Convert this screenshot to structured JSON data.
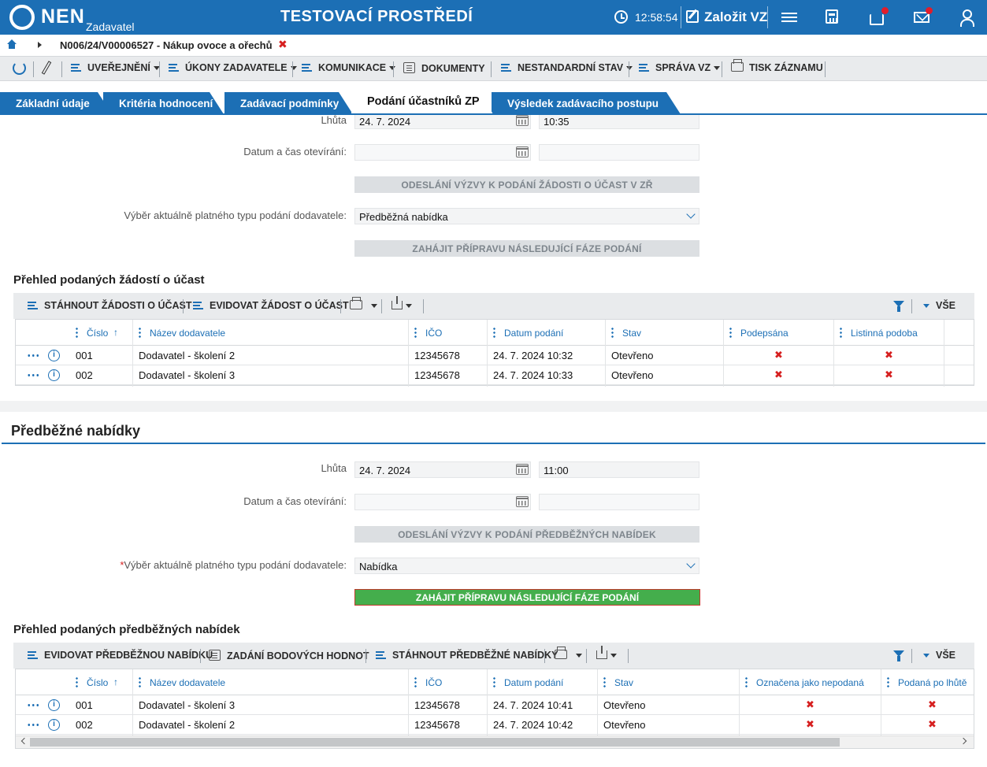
{
  "header": {
    "logo": "NEN",
    "logo_sub": "Zadavatel",
    "env_title": "TESTOVACÍ PROSTŘEDÍ",
    "time": "12:58:54",
    "new_vz": "Založit VZ",
    "colors": {
      "brand": "#1c6fb5",
      "alert": "#e11d2b"
    }
  },
  "breadcrumb": {
    "path": "N006/24/V00006527 - Nákup ovoce a ořechů",
    "close": "✖"
  },
  "toolbar": {
    "items": [
      "UVEŘEJNĚNÍ",
      "ÚKONY ZADAVATELE",
      "KOMUNIKACE",
      "DOKUMENTY",
      "NESTANDARDNÍ STAV",
      "SPRÁVA VZ",
      "TISK ZÁZNAMU"
    ]
  },
  "tabs": [
    "Základní údaje",
    "Kritéria hodnocení",
    "Zadávací podmínky",
    "Podání účastníků ZP",
    "Výsledek zadávacího postupu"
  ],
  "section1": {
    "lhuta_label": "Lhůta",
    "lhuta_date": "24. 7. 2024",
    "lhuta_time": "10:35",
    "otevirani_label": "Datum a čas otevírání:",
    "btn_odeslani": "ODESLÁNÍ VÝZVY K PODÁNÍ ŽÁDOSTI O ÚČAST V ZŘ",
    "typ_label": "Výběr aktuálně platného typu podání dodavatele:",
    "typ_value": "Předběžná nabídka",
    "btn_zahajit": "ZAHÁJIT PŘÍPRAVU NÁSLEDUJÍCÍ FÁZE PODÁNÍ",
    "grid_title": "Přehled podaných žádostí o účast",
    "grid_toolbar": [
      "STÁHNOUT ŽÁDOSTI O ÚČAST",
      "EVIDOVAT ŽÁDOST O ÚČAST"
    ],
    "grid_all": "VŠE",
    "columns": [
      "Číslo",
      "Název dodavatele",
      "IČO",
      "Datum podání",
      "Stav",
      "Podepsána",
      "Listinná podoba"
    ],
    "rows": [
      {
        "cislo": "001",
        "nazev": "Dodavatel - školení 2",
        "ico": "12345678",
        "datum": "24. 7. 2024 10:32",
        "stav": "Otevřeno",
        "x1": "✖",
        "x2": "✖"
      },
      {
        "cislo": "002",
        "nazev": "Dodavatel - školení 3",
        "ico": "12345678",
        "datum": "24. 7. 2024 10:33",
        "stav": "Otevřeno",
        "x1": "✖",
        "x2": "✖"
      }
    ]
  },
  "section2": {
    "panel_title": "Předběžné nabídky",
    "lhuta_label": "Lhůta",
    "lhuta_date": "24. 7. 2024",
    "lhuta_time": "11:00",
    "otevirani_label": "Datum a čas otevírání:",
    "btn_odeslani": "ODESLÁNÍ VÝZVY K PODÁNÍ PŘEDBĚŽNÝCH NABÍDEK",
    "required_mark": "*",
    "typ_label": "Výběr aktuálně platného typu podání dodavatele:",
    "typ_value": "Nabídka",
    "btn_zahajit": "ZAHÁJIT PŘÍPRAVU NÁSLEDUJÍCÍ FÁZE PODÁNÍ",
    "grid_title": "Přehled podaných předběžných nabídek",
    "grid_toolbar": [
      "EVIDOVAT PŘEDBĚŽNOU NABÍDKU",
      "ZADÁNÍ BODOVÝCH HODNOT",
      "STÁHNOUT PŘEDBĚŽNÉ NABÍDKY"
    ],
    "grid_all": "VŠE",
    "columns": [
      "Číslo",
      "Název dodavatele",
      "IČO",
      "Datum podání",
      "Stav",
      "Označena jako nepodaná",
      "Podaná po lhůtě"
    ],
    "rows": [
      {
        "cislo": "001",
        "nazev": "Dodavatel - školení 3",
        "ico": "12345678",
        "datum": "24. 7. 2024 10:41",
        "stav": "Otevřeno",
        "x1": "✖",
        "x2": "✖"
      },
      {
        "cislo": "002",
        "nazev": "Dodavatel - školení 2",
        "ico": "12345678",
        "datum": "24. 7. 2024 10:42",
        "stav": "Otevřeno",
        "x1": "✖",
        "x2": "✖"
      }
    ]
  }
}
